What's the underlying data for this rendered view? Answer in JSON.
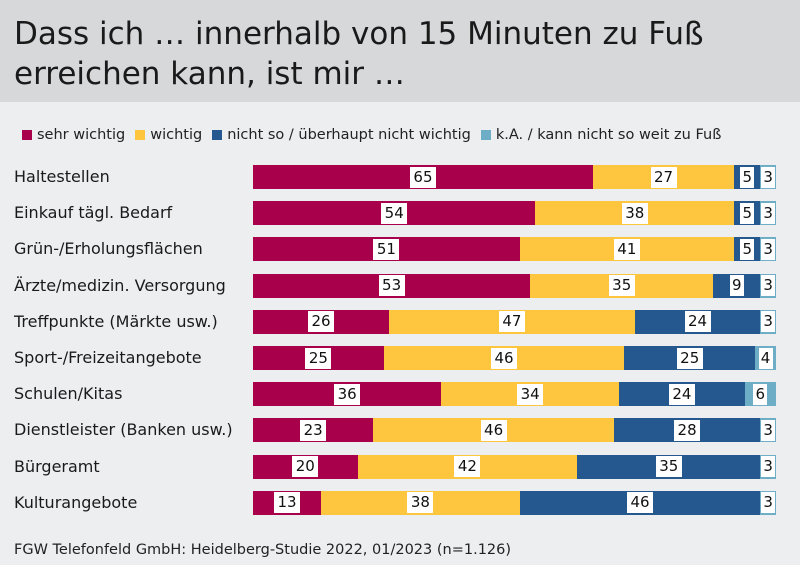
{
  "title": "Dass ich … innerhalb von 15 Minuten zu Fuß erreichen kann, ist mir …",
  "footer": "FGW Telefonfeld GmbH: Heidelberg-Studie 2022, 01/2023 (n=1.126)",
  "chart_data": {
    "type": "bar",
    "orientation": "horizontal",
    "stacked": true,
    "normalized_to_100": true,
    "categories": [
      "Haltestellen",
      "Einkauf tägl. Bedarf",
      "Grün-/Erholungsflächen",
      "Ärzte/medizin. Versorgung",
      "Treffpunkte (Märkte usw.)",
      "Sport-/Freizeitangebote",
      "Schulen/Kitas",
      "Dienstleister (Banken usw.)",
      "Bürgeramt",
      "Kulturangebote"
    ],
    "series": [
      {
        "name": "sehr wichtig",
        "color": "#a8004a",
        "values": [
          65,
          54,
          51,
          53,
          26,
          25,
          36,
          23,
          20,
          13
        ]
      },
      {
        "name": "wichtig",
        "color": "#fec63f",
        "values": [
          27,
          38,
          41,
          35,
          47,
          46,
          34,
          46,
          42,
          38
        ]
      },
      {
        "name": "nicht so / überhaupt nicht wichtig",
        "color": "#25588f",
        "values": [
          5,
          5,
          5,
          9,
          24,
          25,
          24,
          28,
          35,
          46
        ]
      },
      {
        "name": "k.A. / kann nicht so weit zu Fuß",
        "color": "#6eadc6",
        "values": [
          3,
          3,
          3,
          3,
          3,
          4,
          6,
          3,
          3,
          3
        ]
      }
    ],
    "legend_position": "top",
    "grid": false
  }
}
